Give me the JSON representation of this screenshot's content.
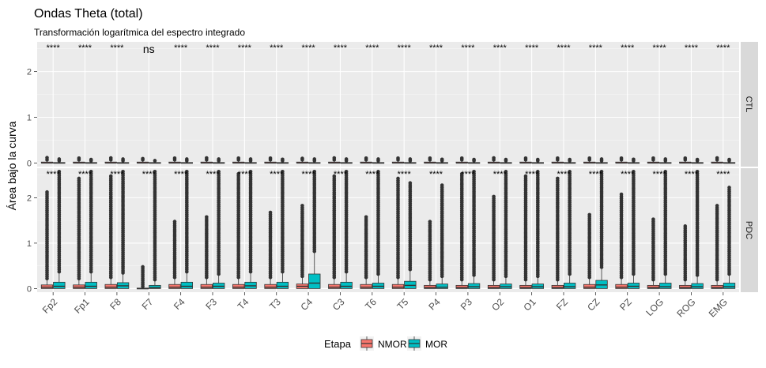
{
  "chart_data": {
    "type": "boxplot",
    "title": "Ondas Theta (total)",
    "subtitle": "Transformación logarítmica del espectro integrado",
    "xlabel": "",
    "ylabel": "Área bajo la curva",
    "ylim": [
      -0.08,
      2.65
    ],
    "yticks": [
      0,
      1,
      2
    ],
    "grid": true,
    "legend": {
      "title": "Etapa",
      "position": "bottom",
      "entries": [
        {
          "name": "NMOR",
          "color": "#F8766D"
        },
        {
          "name": "MOR",
          "color": "#00BFC4"
        }
      ]
    },
    "categories": [
      "Fp2",
      "Fp1",
      "F8",
      "F7",
      "F4",
      "F3",
      "T4",
      "T3",
      "C4",
      "C3",
      "T6",
      "T5",
      "P4",
      "P3",
      "O2",
      "O1",
      "FZ",
      "CZ",
      "PZ",
      "LOG",
      "ROG",
      "EMG"
    ],
    "facets": [
      {
        "label": "CTL",
        "significance": [
          "****",
          "****",
          "****",
          "ns",
          "****",
          "****",
          "****",
          "****",
          "****",
          "****",
          "****",
          "****",
          "****",
          "****",
          "****",
          "****",
          "****",
          "****",
          "****",
          "****",
          "****",
          "****"
        ],
        "series": [
          {
            "name": "NMOR",
            "median": 0.0,
            "q1": 0.0,
            "q3": 0.02,
            "whisker_high": 0.05,
            "outliers_max": [
              0.14,
              0.12,
              0.13,
              0.1,
              0.12,
              0.13,
              0.12,
              0.12,
              0.11,
              0.13,
              0.12,
              0.12,
              0.12,
              0.12,
              0.13,
              0.12,
              0.12,
              0.12,
              0.12,
              0.12,
              0.12,
              0.13
            ]
          },
          {
            "name": "MOR",
            "median": 0.0,
            "q1": 0.0,
            "q3": 0.01,
            "whisker_high": 0.03,
            "outliers_max": [
              0.1,
              0.08,
              0.1,
              0.06,
              0.1,
              0.1,
              0.1,
              0.09,
              0.1,
              0.1,
              0.1,
              0.1,
              0.09,
              0.08,
              0.08,
              0.08,
              0.08,
              0.1,
              0.09,
              0.1,
              0.08,
              0.08
            ]
          }
        ]
      },
      {
        "label": "PDC",
        "significance": [
          "****",
          "****",
          "****",
          "****",
          "****",
          "****",
          "****",
          "****",
          "****",
          "****",
          "****",
          "****",
          "****",
          "****",
          "****",
          "****",
          "****",
          "****",
          "****",
          "****",
          "****",
          "****"
        ],
        "series": [
          {
            "name": "NMOR",
            "median": [
              0.03,
              0.03,
              0.03,
              0.0,
              0.03,
              0.03,
              0.03,
              0.03,
              0.05,
              0.03,
              0.03,
              0.03,
              0.02,
              0.02,
              0.02,
              0.02,
              0.02,
              0.03,
              0.03,
              0.02,
              0.02,
              0.02
            ],
            "q1": [
              0.0,
              0.0,
              0.0,
              0.0,
              0.0,
              0.0,
              0.0,
              0.0,
              0.0,
              0.0,
              0.0,
              0.0,
              0.0,
              0.0,
              0.0,
              0.0,
              0.0,
              0.0,
              0.0,
              0.0,
              0.0,
              0.0
            ],
            "q3": [
              0.08,
              0.08,
              0.09,
              0.01,
              0.09,
              0.09,
              0.09,
              0.09,
              0.1,
              0.09,
              0.09,
              0.09,
              0.07,
              0.07,
              0.07,
              0.07,
              0.07,
              0.09,
              0.09,
              0.07,
              0.07,
              0.07
            ],
            "outliers_max": [
              2.15,
              2.45,
              2.5,
              0.5,
              1.5,
              1.6,
              2.55,
              1.7,
              1.85,
              2.5,
              1.6,
              2.45,
              1.5,
              2.55,
              2.05,
              2.5,
              2.45,
              1.65,
              2.1,
              1.55,
              1.4,
              1.85
            ]
          },
          {
            "name": "MOR",
            "median": [
              0.05,
              0.05,
              0.06,
              0.02,
              0.05,
              0.05,
              0.06,
              0.05,
              0.12,
              0.05,
              0.05,
              0.07,
              0.03,
              0.04,
              0.04,
              0.04,
              0.04,
              0.08,
              0.05,
              0.04,
              0.04,
              0.04
            ],
            "q1": [
              0.0,
              0.0,
              0.0,
              0.0,
              0.0,
              0.0,
              0.0,
              0.0,
              0.0,
              0.0,
              0.0,
              0.0,
              0.0,
              0.0,
              0.0,
              0.0,
              0.0,
              0.0,
              0.0,
              0.0,
              0.0,
              0.0
            ],
            "q3": [
              0.14,
              0.14,
              0.13,
              0.07,
              0.14,
              0.12,
              0.14,
              0.14,
              0.32,
              0.14,
              0.12,
              0.16,
              0.1,
              0.11,
              0.1,
              0.1,
              0.12,
              0.18,
              0.12,
              0.12,
              0.11,
              0.12
            ],
            "outliers_max": [
              2.6,
              2.6,
              2.6,
              2.6,
              2.6,
              2.6,
              2.6,
              2.6,
              2.6,
              2.6,
              2.6,
              2.35,
              2.3,
              2.6,
              2.6,
              2.6,
              2.6,
              2.6,
              2.6,
              2.6,
              2.6,
              2.25
            ]
          }
        ]
      }
    ]
  }
}
